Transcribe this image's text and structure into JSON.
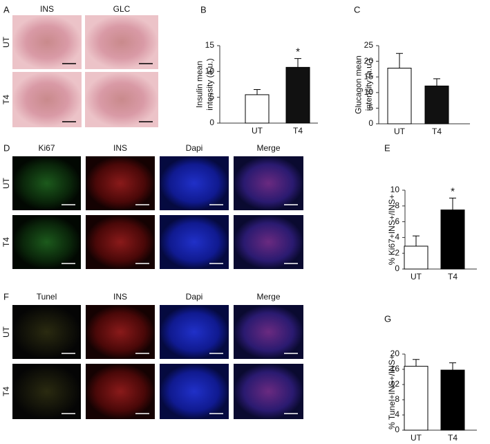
{
  "panels": [
    {
      "letter": "A",
      "columns": [
        "INS",
        "GLC"
      ],
      "rows": [
        "UT",
        "T4"
      ]
    },
    {
      "letter": "D",
      "columns": [
        "Ki67",
        "INS",
        "Dapi",
        "Merge"
      ],
      "rows": [
        "UT",
        "T4"
      ]
    },
    {
      "letter": "F",
      "columns": [
        "Tunel",
        "INS",
        "Dapi",
        "Merge"
      ],
      "rows": [
        "UT",
        "T4"
      ]
    }
  ],
  "chart_data": [
    {
      "type": "bar",
      "letter": "B",
      "y_label": [
        "Insulin mean",
        "intensity (a.u.)"
      ],
      "categories": [
        "UT",
        "T4"
      ],
      "values": [
        5.5,
        10.8
      ],
      "errors": [
        1.0,
        1.7
      ],
      "colors": [
        "#ffffff",
        "#111111"
      ],
      "ylim": [
        0,
        15
      ],
      "yticks": [
        0,
        5,
        10,
        15
      ],
      "annotation": "*"
    },
    {
      "type": "bar",
      "letter": "C",
      "y_label": [
        "Glucagon mean",
        "intensity (a.u.)"
      ],
      "categories": [
        "UT",
        "T4"
      ],
      "values": [
        17.8,
        12.1
      ],
      "errors": [
        4.7,
        2.3
      ],
      "colors": [
        "#ffffff",
        "#111111"
      ],
      "ylim": [
        0,
        25
      ],
      "yticks": [
        0,
        5,
        10,
        15,
        20,
        25
      ]
    },
    {
      "type": "bar",
      "letter": "E",
      "y_label": [
        "% Ki67+INS+/INS+"
      ],
      "categories": [
        "UT",
        "T4"
      ],
      "values": [
        2.9,
        7.5
      ],
      "errors": [
        1.3,
        1.5
      ],
      "colors": [
        "#ffffff",
        "#000000"
      ],
      "ylim": [
        0,
        10
      ],
      "yticks": [
        0,
        2,
        4,
        6,
        8,
        10
      ],
      "annotation": "*"
    },
    {
      "type": "bar",
      "letter": "G",
      "y_label": [
        "% Tunel+INS+/INS+"
      ],
      "categories": [
        "UT",
        "T4"
      ],
      "values": [
        16.8,
        15.8
      ],
      "errors": [
        1.8,
        1.9
      ],
      "colors": [
        "#ffffff",
        "#000000"
      ],
      "ylim": [
        0,
        20
      ],
      "yticks": [
        0,
        4,
        8,
        12,
        16,
        20
      ]
    }
  ]
}
